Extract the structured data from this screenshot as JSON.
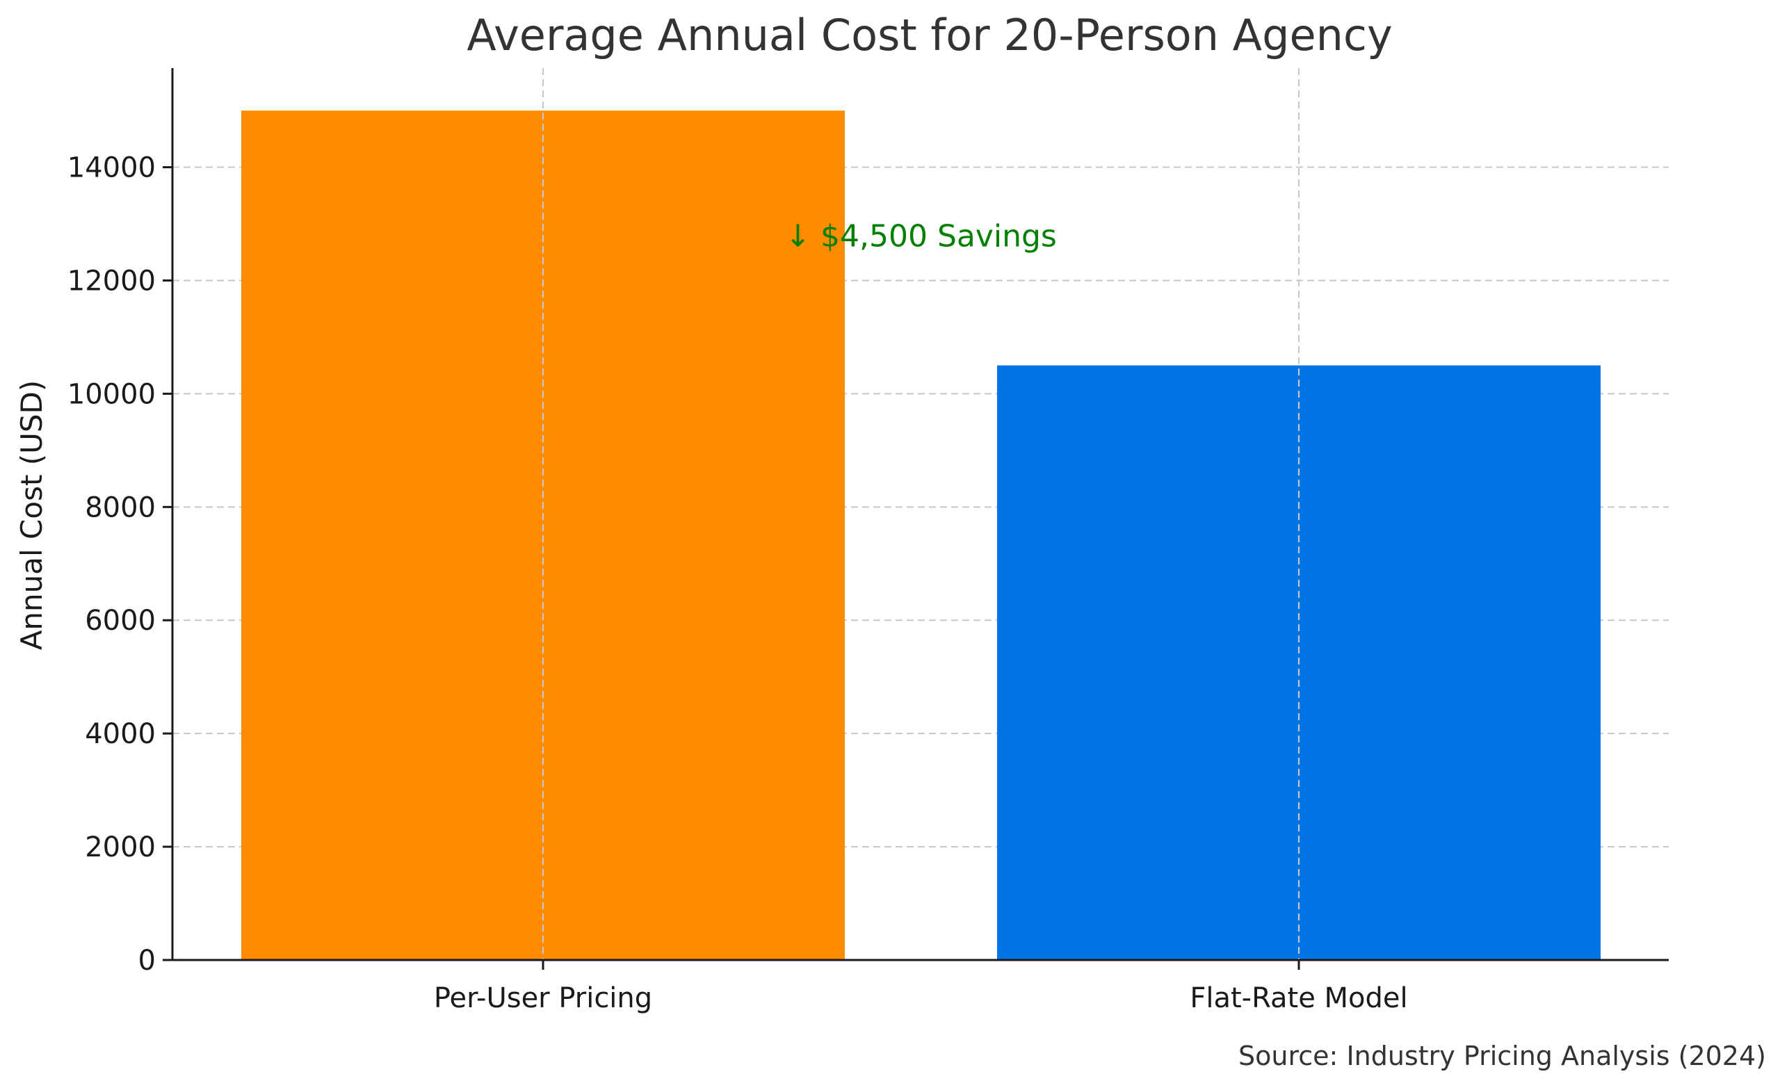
{
  "chart_data": {
    "type": "bar",
    "title": "Average Annual Cost for 20-Person Agency",
    "xlabel": "",
    "ylabel": "Annual Cost (USD)",
    "categories": [
      "Per-User Pricing",
      "Flat-Rate Model"
    ],
    "values": [
      15000,
      10500
    ],
    "colors": [
      "#ff8c00",
      "#0073e6"
    ],
    "ylim": [
      0,
      15750
    ],
    "yticks": [
      0,
      2000,
      4000,
      6000,
      8000,
      10000,
      12000,
      14000
    ],
    "grid": true,
    "annotation": {
      "text": "↓ $4,500 Savings",
      "color": "#008000",
      "x_category_position": 0.5,
      "y_value": 12800
    },
    "source": "Source: Industry Pricing Analysis (2024)"
  }
}
